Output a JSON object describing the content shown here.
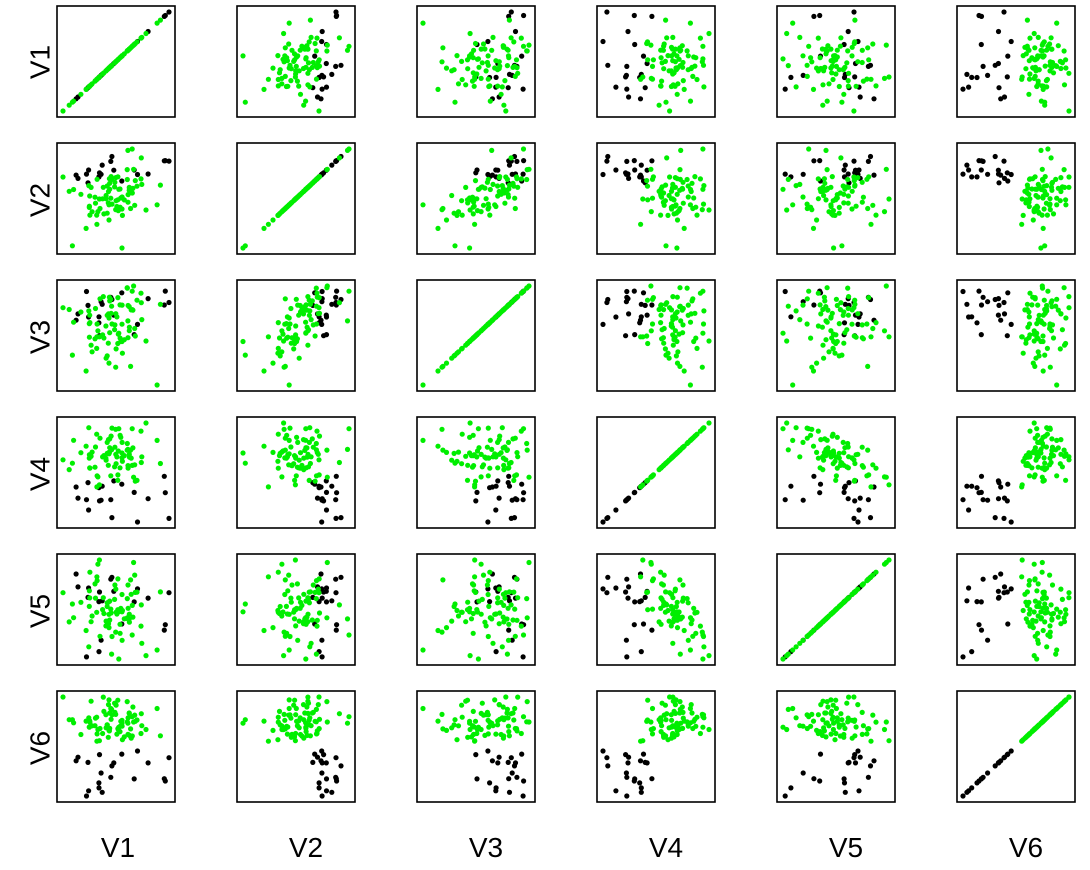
{
  "chart_data": {
    "type": "scatter-matrix",
    "variables": [
      "V1",
      "V2",
      "V3",
      "V4",
      "V5",
      "V6"
    ],
    "groups": [
      {
        "color": "#000000",
        "n": 20
      },
      {
        "color": "#00ee00",
        "n": 80
      }
    ],
    "grid": false,
    "legend": "none",
    "note": "6x6 pairs plot; panel (row i, col j) plots variable j on x against variable i on y; diagonal panels show each variable against itself; points colored by group (black, green)."
  }
}
